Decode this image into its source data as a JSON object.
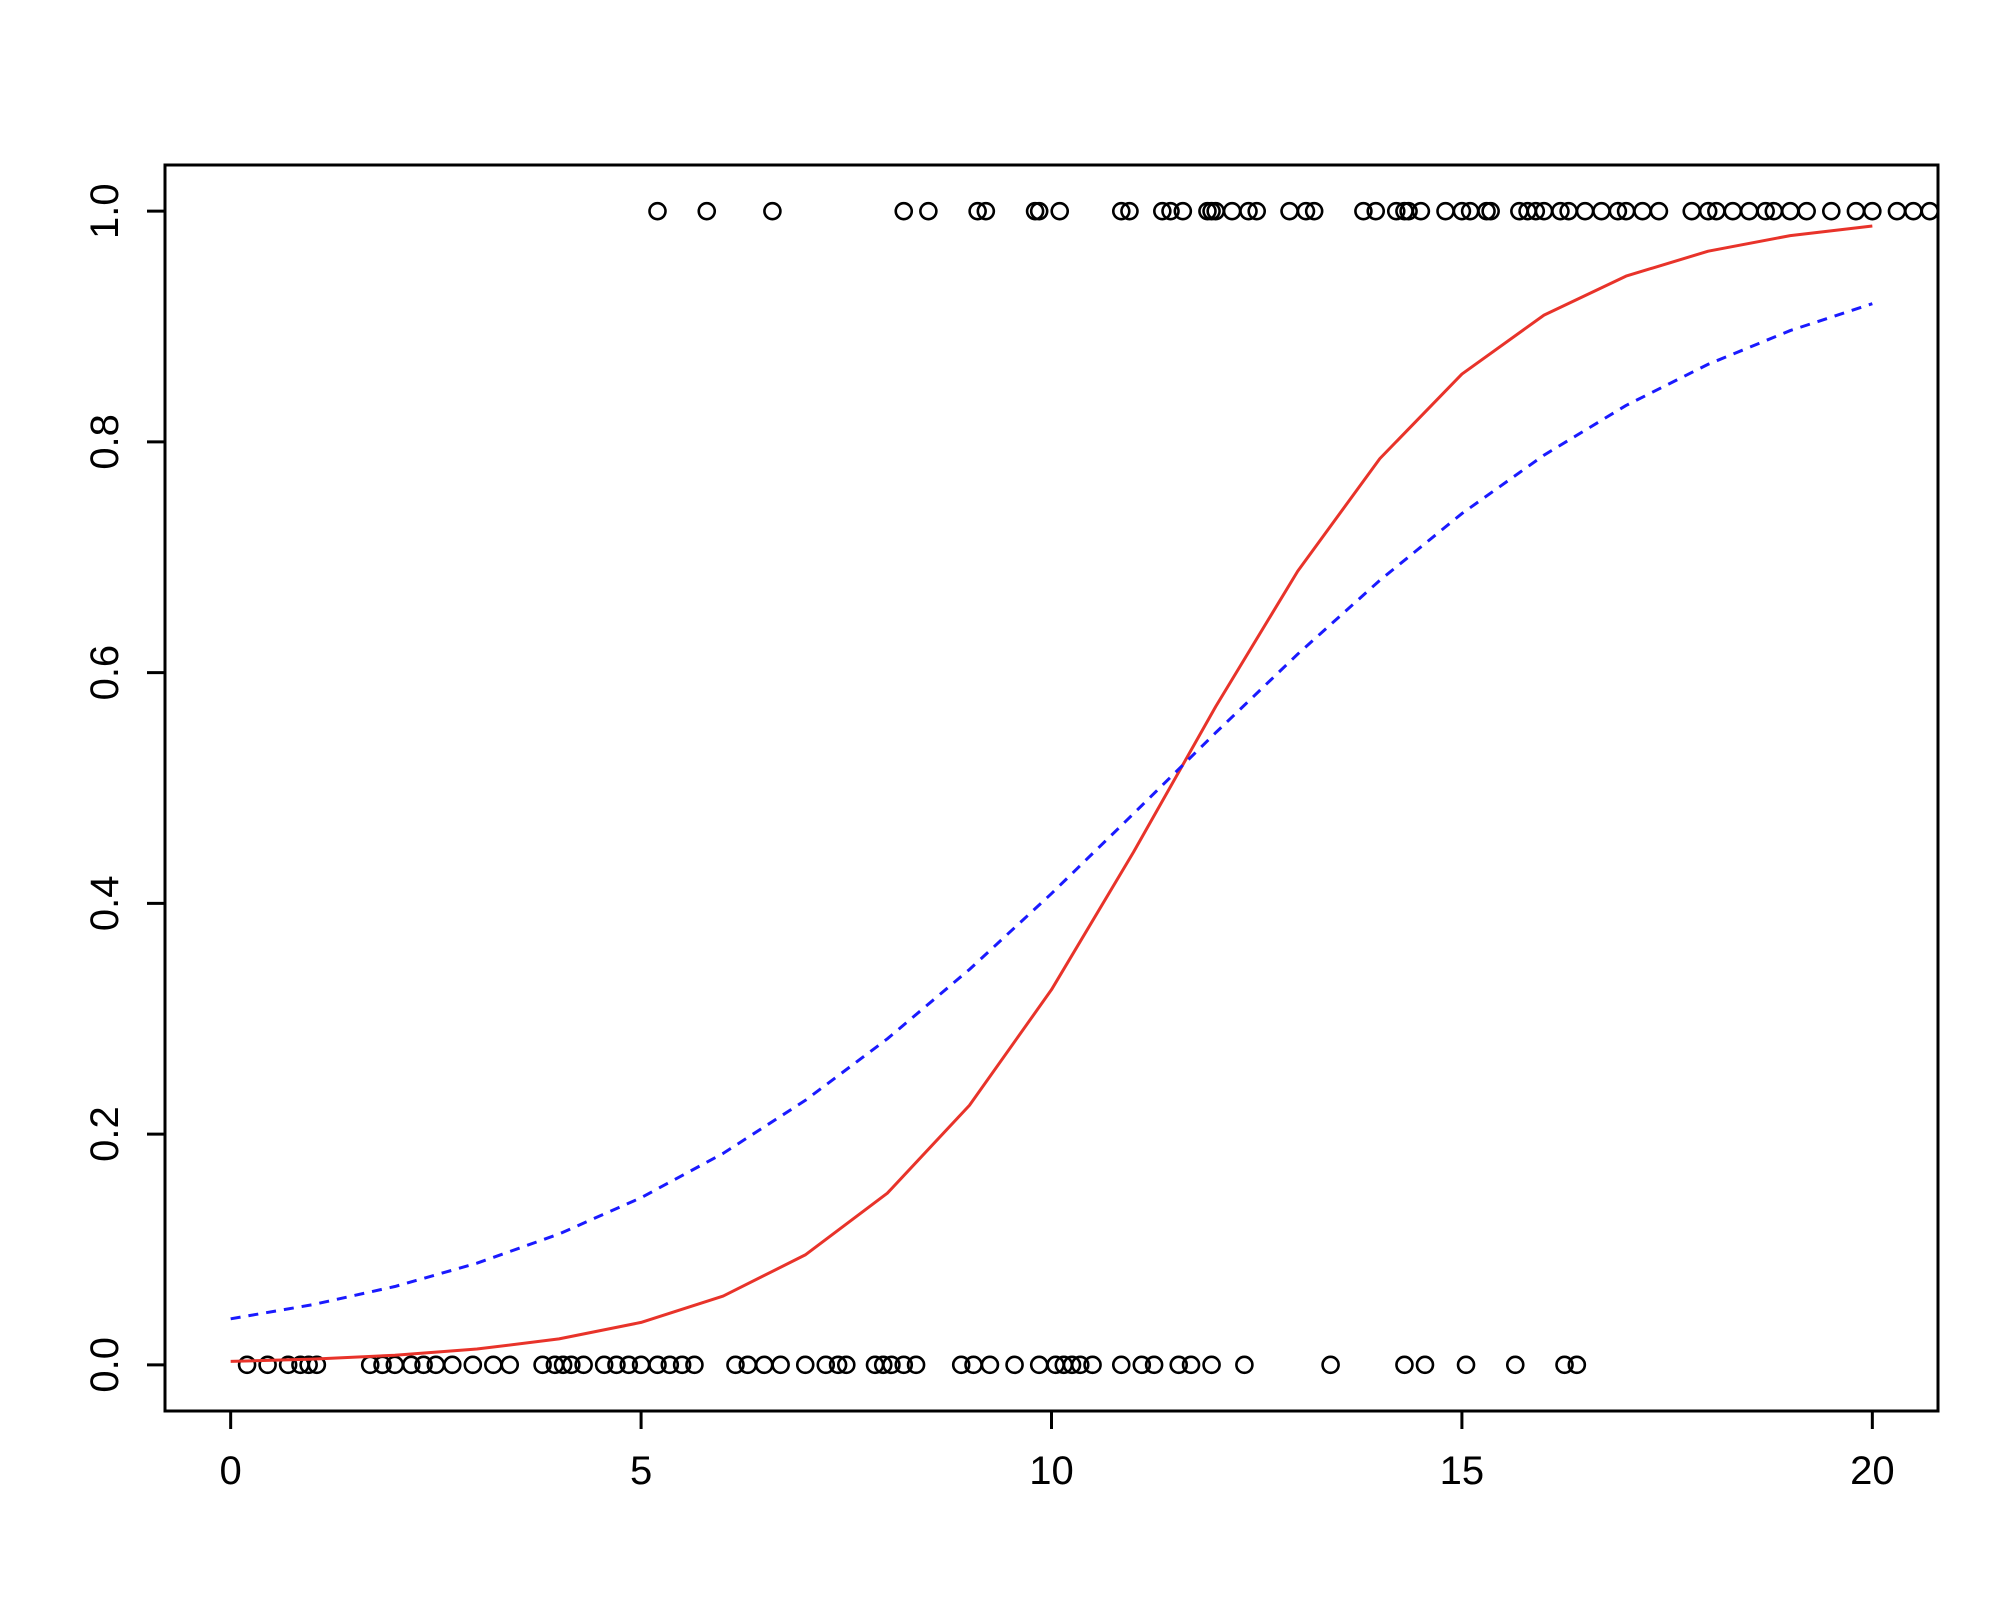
{
  "chart_data": {
    "type": "scatter",
    "xlim": [
      -0.8,
      20.8
    ],
    "ylim": [
      -0.04,
      1.04
    ],
    "xticks": [
      0,
      5,
      10,
      15,
      20
    ],
    "yticks": [
      {
        "value": 0,
        "label": "0.0"
      },
      {
        "value": 0.2,
        "label": "0.2"
      },
      {
        "value": 0.4,
        "label": "0.4"
      },
      {
        "value": 0.6,
        "label": "0.6"
      },
      {
        "value": 0.8,
        "label": "0.8"
      },
      {
        "value": 1,
        "label": "1.0"
      }
    ],
    "grid": false,
    "series": [
      {
        "type": "scatter",
        "color": "#000000",
        "x": [
          5.2,
          5.8,
          6.6,
          8.2,
          8.5,
          9.1,
          9.2,
          9.8,
          9.85,
          10.1,
          10.85,
          10.95,
          11.35,
          11.45,
          11.6,
          11.9,
          11.95,
          12.0,
          12.2,
          12.4,
          12.5,
          12.9,
          13.1,
          13.2,
          13.8,
          13.95,
          14.2,
          14.3,
          14.35,
          14.5,
          14.8,
          15.0,
          15.1,
          15.3,
          15.35,
          15.7,
          15.8,
          15.9,
          16.0,
          16.2,
          16.3,
          16.5,
          16.7,
          16.9,
          17.0,
          17.2,
          17.4,
          17.8,
          18.0,
          18.1,
          18.3,
          18.5,
          18.7,
          18.8,
          19.0,
          19.2,
          19.5,
          19.8,
          20.0,
          20.3,
          20.5,
          20.7
        ],
        "values": [
          1,
          1,
          1,
          1,
          1,
          1,
          1,
          1,
          1,
          1,
          1,
          1,
          1,
          1,
          1,
          1,
          1,
          1,
          1,
          1,
          1,
          1,
          1,
          1,
          1,
          1,
          1,
          1,
          1,
          1,
          1,
          1,
          1,
          1,
          1,
          1,
          1,
          1,
          1,
          1,
          1,
          1,
          1,
          1,
          1,
          1,
          1,
          1,
          1,
          1,
          1,
          1,
          1,
          1,
          1,
          1,
          1,
          1,
          1,
          1,
          1,
          1
        ]
      },
      {
        "type": "scatter",
        "color": "#000000",
        "x": [
          0.2,
          0.45,
          0.7,
          0.85,
          0.95,
          1.05,
          1.7,
          1.85,
          2.0,
          2.2,
          2.35,
          2.5,
          2.7,
          2.95,
          3.2,
          3.4,
          3.8,
          3.95,
          4.05,
          4.15,
          4.3,
          4.55,
          4.7,
          4.85,
          5.0,
          5.2,
          5.35,
          5.5,
          5.65,
          6.15,
          6.3,
          6.5,
          6.7,
          7.0,
          7.25,
          7.4,
          7.5,
          7.85,
          7.95,
          8.05,
          8.2,
          8.35,
          8.9,
          9.05,
          9.25,
          9.55,
          9.85,
          10.05,
          10.15,
          10.25,
          10.35,
          10.5,
          10.85,
          11.1,
          11.25,
          11.55,
          11.7,
          11.95,
          12.35,
          13.4,
          14.3,
          14.55,
          15.05,
          15.65,
          16.25,
          16.4
        ],
        "values": [
          0,
          0,
          0,
          0,
          0,
          0,
          0,
          0,
          0,
          0,
          0,
          0,
          0,
          0,
          0,
          0,
          0,
          0,
          0,
          0,
          0,
          0,
          0,
          0,
          0,
          0,
          0,
          0,
          0,
          0,
          0,
          0,
          0,
          0,
          0,
          0,
          0,
          0,
          0,
          0,
          0,
          0,
          0,
          0,
          0,
          0,
          0,
          0,
          0,
          0,
          0,
          0,
          0,
          0,
          0,
          0,
          0,
          0,
          0,
          0,
          0,
          0,
          0,
          0,
          0,
          0
        ]
      },
      {
        "type": "line",
        "color": "#e8332a",
        "dashed": false,
        "x": [
          0,
          1,
          2,
          3,
          4,
          5,
          6,
          7,
          8,
          9,
          10,
          11,
          12,
          13,
          14,
          15,
          16,
          17,
          18,
          19,
          20
        ],
        "values": [
          0.003,
          0.005,
          0.0083,
          0.0137,
          0.0225,
          0.0368,
          0.0596,
          0.0953,
          0.1488,
          0.2249,
          0.3252,
          0.4445,
          0.5705,
          0.688,
          0.7855,
          0.8588,
          0.9099,
          0.9437,
          0.9653,
          0.9788,
          0.9871
        ]
      },
      {
        "type": "line",
        "color": "#1a1aff",
        "dashed": true,
        "x": [
          0,
          1,
          2,
          3,
          4,
          5,
          6,
          7,
          8,
          9,
          10,
          11,
          12,
          13,
          14,
          15,
          16,
          17,
          18,
          19,
          20
        ],
        "values": [
          0.0399,
          0.0522,
          0.0679,
          0.0881,
          0.1134,
          0.1449,
          0.1833,
          0.2292,
          0.2826,
          0.3427,
          0.4085,
          0.4778,
          0.5479,
          0.6161,
          0.68,
          0.7379,
          0.7885,
          0.8316,
          0.8673,
          0.8965,
          0.9198
        ]
      }
    ]
  }
}
